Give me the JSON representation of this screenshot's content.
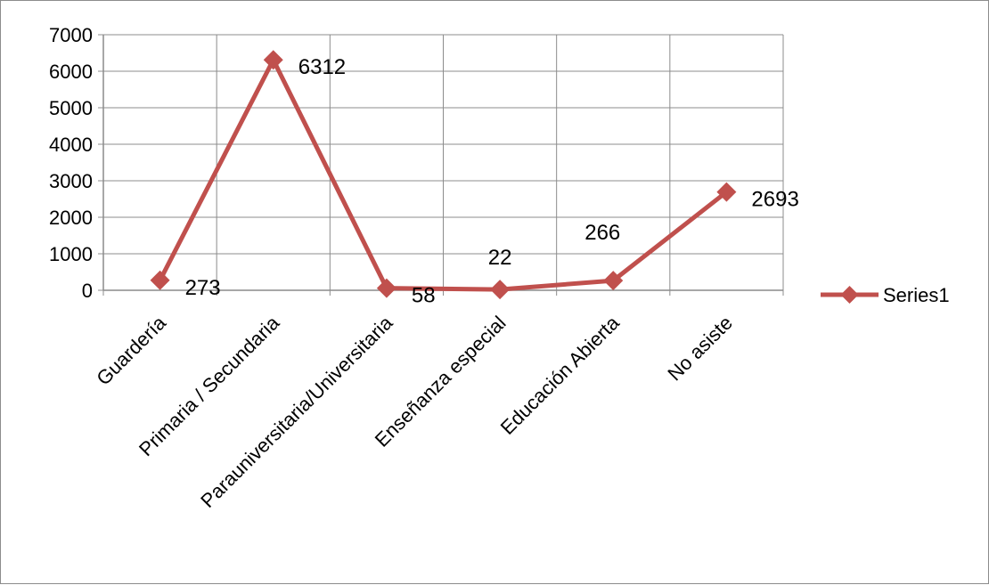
{
  "chart_data": {
    "type": "line",
    "categories": [
      "Guardería",
      "Primaria / Secundaria",
      "Parauniversitaria/Universitaria",
      "Enseñanza especial",
      "Educación Abierta",
      "No asiste"
    ],
    "series": [
      {
        "name": "Series1",
        "values": [
          273,
          6312,
          58,
          22,
          266,
          2693
        ],
        "color": "#c0504d",
        "marker": "diamond"
      }
    ],
    "data_labels": [
      "273",
      "6312",
      "58",
      "22",
      "266",
      "2693"
    ],
    "y_ticks": [
      "0",
      "1000",
      "2000",
      "3000",
      "4000",
      "5000",
      "6000",
      "7000"
    ],
    "ylim": [
      0,
      7000
    ],
    "grid": true,
    "legend": {
      "position": "right",
      "entries": [
        "Series1"
      ]
    },
    "title": "",
    "xlabel": "",
    "ylabel": "",
    "colors": {
      "grid": "#8c8c8c",
      "axis": "#8c8c8c",
      "border": "#8c8c8c"
    }
  }
}
